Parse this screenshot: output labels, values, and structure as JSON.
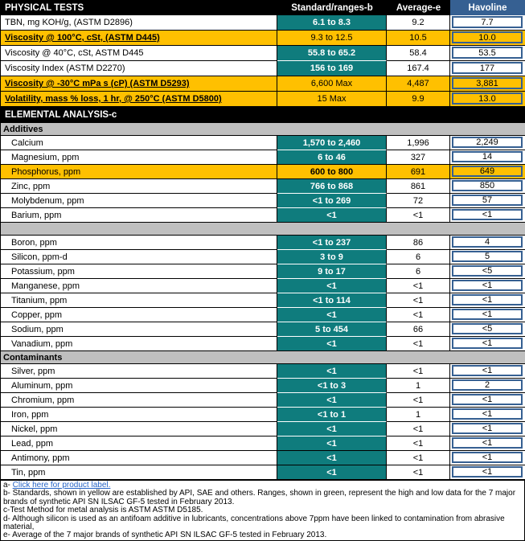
{
  "colors": {
    "range_green": "#0f7c7d",
    "standard_yellow": "#ffc000",
    "havoline_blue": "#366092",
    "section_gray": "#bfbfbf",
    "link_blue": "#2563c6"
  },
  "table": {
    "columns": [
      "PHYSICAL TESTS",
      "Standard/ranges-b",
      "Average-e",
      "Havoline"
    ],
    "rows": [
      {
        "type": "data",
        "section": "phys",
        "label": "TBN, mg KOH/g, (ASTM D2896)",
        "standard": "6.1 to 8.3",
        "average": "9.2",
        "havoline": "7.7"
      },
      {
        "type": "data",
        "section": "phys",
        "yellow": true,
        "emphasis": true,
        "label": "Viscosity @ 100°C, cSt, (ASTM D445)",
        "standard": "9.3 to 12.5",
        "average": "10.5",
        "havoline": "10.0"
      },
      {
        "type": "data",
        "section": "phys",
        "label": "Viscosity @ 40°C, cSt, ASTM D445",
        "standard": "55.8 to 65.2",
        "average": "58.4",
        "havoline": "53.5"
      },
      {
        "type": "data",
        "section": "phys",
        "label": "Viscosity Index (ASTM D2270)",
        "standard": "156 to 169",
        "average": "167.4",
        "havoline": "177"
      },
      {
        "type": "data",
        "section": "phys",
        "yellow": true,
        "emphasis": true,
        "label": "Viscosity @ -30°C mPa s (cP) (ASTM D5293)",
        "standard": "6,600 Max",
        "average": "4,487",
        "havoline": "3,881"
      },
      {
        "type": "data",
        "section": "phys",
        "yellow": true,
        "emphasis": true,
        "label": "Volatility, mass % loss, 1 hr, @ 250°C (ASTM D5800)",
        "standard": "15 Max",
        "average": "9.9",
        "havoline": "13.0"
      },
      {
        "type": "section",
        "label": "ELEMENTAL ANALYSIS-c"
      },
      {
        "type": "subheader",
        "label": "Additives"
      },
      {
        "type": "data",
        "section": "elem",
        "label": "Calcium",
        "standard": "1,570 to 2,460",
        "average": "1,996",
        "havoline": "2,249"
      },
      {
        "type": "data",
        "section": "elem",
        "label": "Magnesium, ppm",
        "standard": "6 to 46",
        "average": "327",
        "havoline": "14"
      },
      {
        "type": "data",
        "section": "elem",
        "yellow": true,
        "standard_bold": true,
        "label": "Phosphorus, ppm",
        "standard": "600 to 800",
        "average": "691",
        "havoline": "649"
      },
      {
        "type": "data",
        "section": "elem",
        "label": "Zinc, ppm",
        "standard": "766 to 868",
        "average": "861",
        "havoline": "850"
      },
      {
        "type": "data",
        "section": "elem",
        "label": "Molybdenum, ppm",
        "standard": "<1 to 269",
        "average": "72",
        "havoline": "57"
      },
      {
        "type": "data",
        "section": "elem",
        "label": "Barium, ppm",
        "standard": "<1",
        "average": "<1",
        "havoline": "<1"
      },
      {
        "type": "separator"
      },
      {
        "type": "data",
        "section": "elem",
        "label": "Boron, ppm",
        "standard": "<1 to 237",
        "average": "86",
        "havoline": "4"
      },
      {
        "type": "data",
        "section": "elem",
        "label": "Silicon, ppm-d",
        "standard": "3 to 9",
        "average": "6",
        "havoline": "5"
      },
      {
        "type": "data",
        "section": "elem",
        "label": "Potassium, ppm",
        "standard": "9 to 17",
        "average": "6",
        "havoline": "<5"
      },
      {
        "type": "data",
        "section": "elem",
        "label": "Manganese, ppm",
        "standard": "<1",
        "average": "<1",
        "havoline": "<1"
      },
      {
        "type": "data",
        "section": "elem",
        "label": "Titanium, ppm",
        "standard": "<1 to 114",
        "average": "<1",
        "havoline": "<1"
      },
      {
        "type": "data",
        "section": "elem",
        "label": "Copper, ppm",
        "standard": "<1",
        "average": "<1",
        "havoline": "<1"
      },
      {
        "type": "data",
        "section": "elem",
        "label": "Sodium, ppm",
        "standard": "5 to 454",
        "average": "66",
        "havoline": "<5"
      },
      {
        "type": "data",
        "section": "elem",
        "label": "Vanadium, ppm",
        "standard": "<1",
        "average": "<1",
        "havoline": "<1"
      },
      {
        "type": "subheader",
        "label": "Contaminants"
      },
      {
        "type": "data",
        "section": "elem",
        "label": "Silver, ppm",
        "standard": "<1",
        "average": "<1",
        "havoline": "<1"
      },
      {
        "type": "data",
        "section": "elem",
        "label": "Aluminum, ppm",
        "standard": "<1 to 3",
        "average": "1",
        "havoline": "2"
      },
      {
        "type": "data",
        "section": "elem",
        "label": "Chromium, ppm",
        "standard": "<1",
        "average": "<1",
        "havoline": "<1"
      },
      {
        "type": "data",
        "section": "elem",
        "label": "Iron, ppm",
        "standard": "<1 to 1",
        "average": "1",
        "havoline": "<1"
      },
      {
        "type": "data",
        "section": "elem",
        "label": "Nickel, ppm",
        "standard": "<1",
        "average": "<1",
        "havoline": "<1"
      },
      {
        "type": "data",
        "section": "elem",
        "label": "Lead, ppm",
        "standard": "<1",
        "average": "<1",
        "havoline": "<1"
      },
      {
        "type": "data",
        "section": "elem",
        "break": true,
        "label": "Antimony, ppm",
        "standard": "<1",
        "average": "<1",
        "havoline": "<1"
      },
      {
        "type": "data",
        "section": "elem",
        "break": true,
        "label": "Tin, ppm",
        "standard": "<1",
        "average": "<1",
        "havoline": "<1"
      }
    ]
  },
  "footnotes": {
    "a_prefix": "a- ",
    "a_link": "Click here for product label.",
    "b": "b- Standards, shown in yellow are established by API, SAE and others. Ranges, shown in green, represent the high and low data for the 7 major brands of synthetic API SN ILSAC GF-5 tested in February 2013.",
    "c": "c-Test Method for metal analysis is ASTM ASTM D5185.",
    "d": "d- Although silicon is used as an antifoam additive in lubricants, concentrations above 7ppm have been linked to contamination from abrasive material,",
    "e": "e- Average of the 7 major brands of synthetic API SN ILSAC GF-5 tested in February 2013."
  }
}
